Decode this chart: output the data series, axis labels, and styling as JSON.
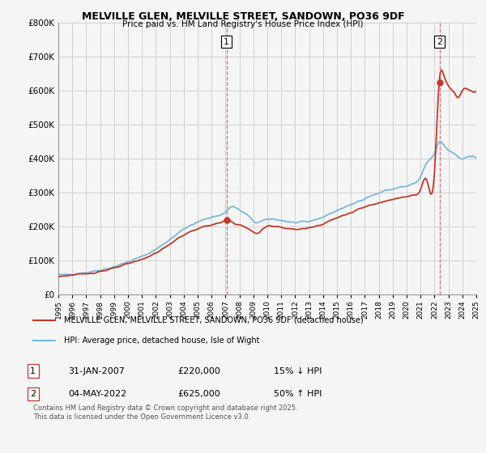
{
  "title_line1": "MELVILLE GLEN, MELVILLE STREET, SANDOWN, PO36 9DF",
  "title_line2": "Price paid vs. HM Land Registry's House Price Index (HPI)",
  "hpi_label": "HPI: Average price, detached house, Isle of Wight",
  "property_label": "MELVILLE GLEN, MELVILLE STREET, SANDOWN, PO36 9DF (detached house)",
  "footnote": "Contains HM Land Registry data © Crown copyright and database right 2025.\nThis data is licensed under the Open Government Licence v3.0.",
  "annotation1": {
    "label": "1",
    "date": "31-JAN-2007",
    "price": "£220,000",
    "pct": "15% ↓ HPI"
  },
  "annotation2": {
    "label": "2",
    "date": "04-MAY-2022",
    "price": "£625,000",
    "pct": "50% ↑ HPI"
  },
  "hpi_color": "#7ab8d9",
  "property_color": "#c0392b",
  "vline_color": "#e07070",
  "background_color": "#f5f5f5",
  "grid_color": "#cccccc",
  "ylim": [
    0,
    800000
  ],
  "yticks": [
    0,
    100000,
    200000,
    300000,
    400000,
    500000,
    600000,
    700000,
    800000
  ],
  "sale1_x": 2007.08,
  "sale1_y": 220000,
  "sale2_x": 2022.37,
  "sale2_y": 625000,
  "xmin": 1995,
  "xmax": 2025
}
